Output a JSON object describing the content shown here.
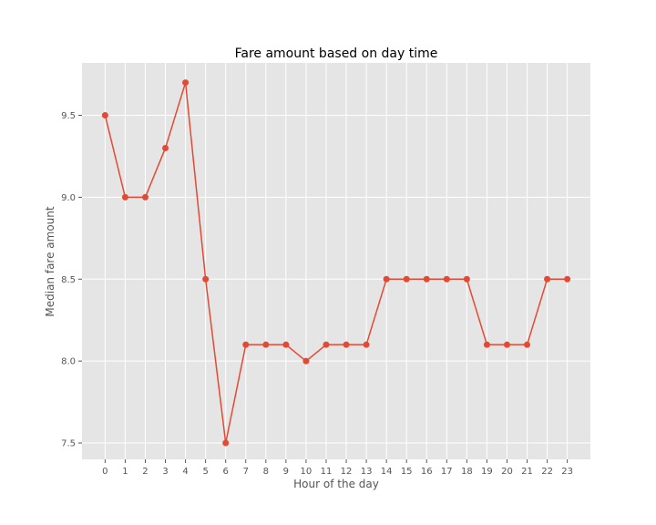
{
  "chart_data": {
    "type": "line",
    "title": "Fare amount based on day time",
    "xlabel": "Hour of the day",
    "ylabel": "Median fare amount",
    "x": [
      0,
      1,
      2,
      3,
      4,
      5,
      6,
      7,
      8,
      9,
      10,
      11,
      12,
      13,
      14,
      15,
      16,
      17,
      18,
      19,
      20,
      21,
      22,
      23
    ],
    "x_tick_labels": [
      "0",
      "1",
      "2",
      "3",
      "4",
      "5",
      "6",
      "7",
      "8",
      "9",
      "10",
      "11",
      "12",
      "13",
      "14",
      "15",
      "16",
      "17",
      "18",
      "19",
      "20",
      "21",
      "22",
      "23"
    ],
    "y_ticks": [
      7.5,
      8.0,
      8.5,
      9.0,
      9.5
    ],
    "y_tick_labels": [
      "7.5",
      "8.0",
      "8.5",
      "9.0",
      "9.5"
    ],
    "series": [
      {
        "values": [
          9.5,
          9.0,
          9.0,
          9.3,
          9.7,
          8.5,
          7.5,
          8.1,
          8.1,
          8.1,
          8.0,
          8.1,
          8.1,
          8.1,
          8.5,
          8.5,
          8.5,
          8.5,
          8.5,
          8.1,
          8.1,
          8.1,
          8.5,
          8.5
        ],
        "color": "#E24A33",
        "marker": "circle"
      }
    ],
    "xlim": [
      -1.15,
      24.15
    ],
    "ylim": [
      7.4,
      9.82
    ],
    "grid": true,
    "legend": "none",
    "style": {
      "plot_background": "#E5E5E5",
      "grid_color": "#FFFFFF"
    }
  }
}
